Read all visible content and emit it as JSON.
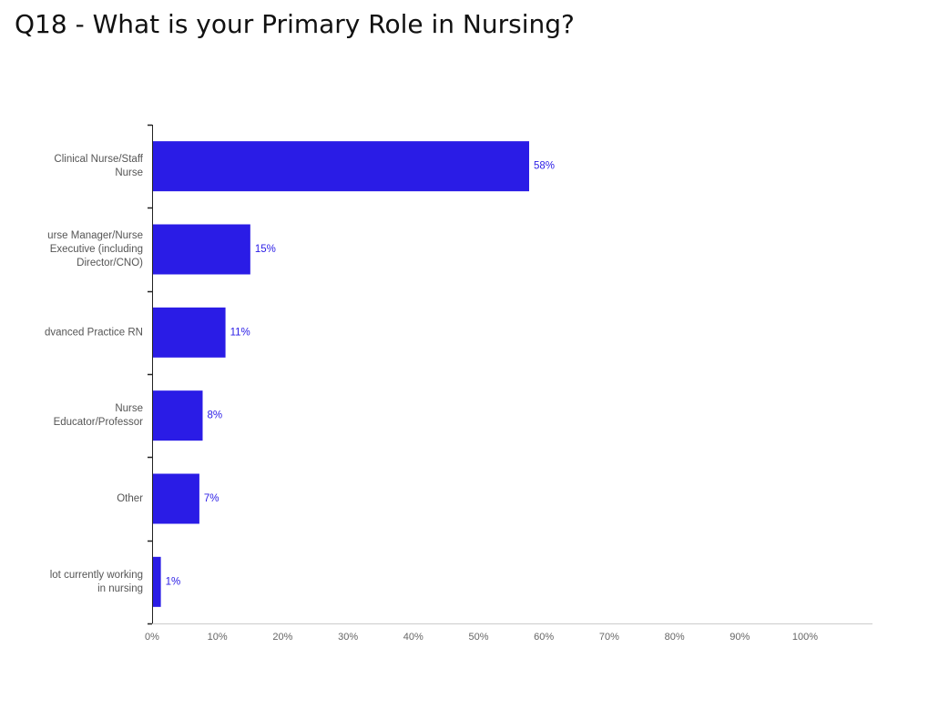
{
  "page": {
    "title": "Q18 - What is your Primary Role in Nursing?"
  },
  "chart_data": {
    "type": "bar",
    "orientation": "horizontal",
    "title": "",
    "xlabel": "",
    "ylabel": "",
    "categories": [
      [
        "Clinical Nurse/Staff",
        "Nurse"
      ],
      [
        "urse Manager/Nurse",
        "Executive (including",
        "Director/CNO)"
      ],
      [
        "dvanced Practice RN"
      ],
      [
        "Nurse",
        "Educator/Professor"
      ],
      [
        "Other"
      ],
      [
        "lot currently working",
        "in nursing"
      ]
    ],
    "values": [
      57.6,
      14.9,
      11.1,
      7.6,
      7.1,
      1.2
    ],
    "data_labels": [
      "58%",
      "15%",
      "11%",
      "8%",
      "7%",
      "1%"
    ],
    "xlim": [
      0,
      110
    ],
    "x_ticks": [
      0,
      10,
      20,
      30,
      40,
      50,
      60,
      70,
      80,
      90,
      100
    ],
    "x_tick_labels": [
      "0%",
      "10%",
      "20%",
      "30%",
      "40%",
      "50%",
      "60%",
      "70%",
      "80%",
      "90%",
      "100%"
    ],
    "grid": false,
    "legend": "none",
    "colors": {
      "bar": "#2a1ce6",
      "data_label": "#2a1ce6",
      "axis": "#222222",
      "baseline": "#cccccc"
    }
  }
}
